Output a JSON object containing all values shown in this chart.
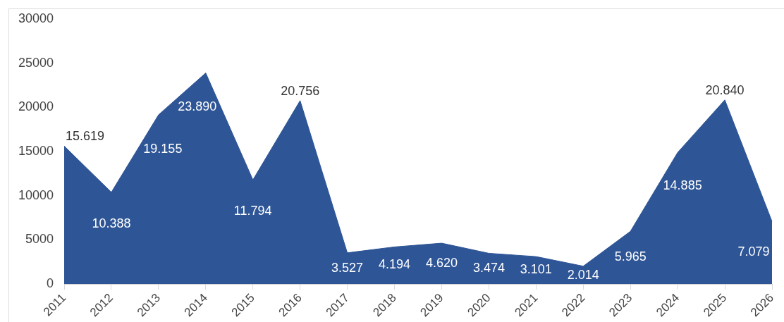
{
  "chart_data": {
    "type": "area",
    "categories": [
      "2011",
      "2012",
      "2013",
      "2014",
      "2015",
      "2016",
      "2017",
      "2018",
      "2019",
      "2020",
      "2021",
      "2022",
      "2023",
      "2024",
      "2025",
      "2026"
    ],
    "values": [
      15619,
      10388,
      19155,
      23890,
      11794,
      20756,
      3527,
      4194,
      4620,
      3474,
      3101,
      2014,
      5965,
      14885,
      20840,
      7079
    ],
    "value_labels": [
      "15.619",
      "10.388",
      "19.155",
      "23.890",
      "11.794",
      "20.756",
      "3.527",
      "4.194",
      "4.620",
      "3.474",
      "3.101",
      "2.014",
      "5.965",
      "14.885",
      "20.840",
      "7.079"
    ],
    "color": "#2e5596",
    "ylim": [
      0,
      30000
    ],
    "yticks": [
      0,
      5000,
      10000,
      15000,
      20000,
      25000,
      30000
    ],
    "grid": false
  }
}
